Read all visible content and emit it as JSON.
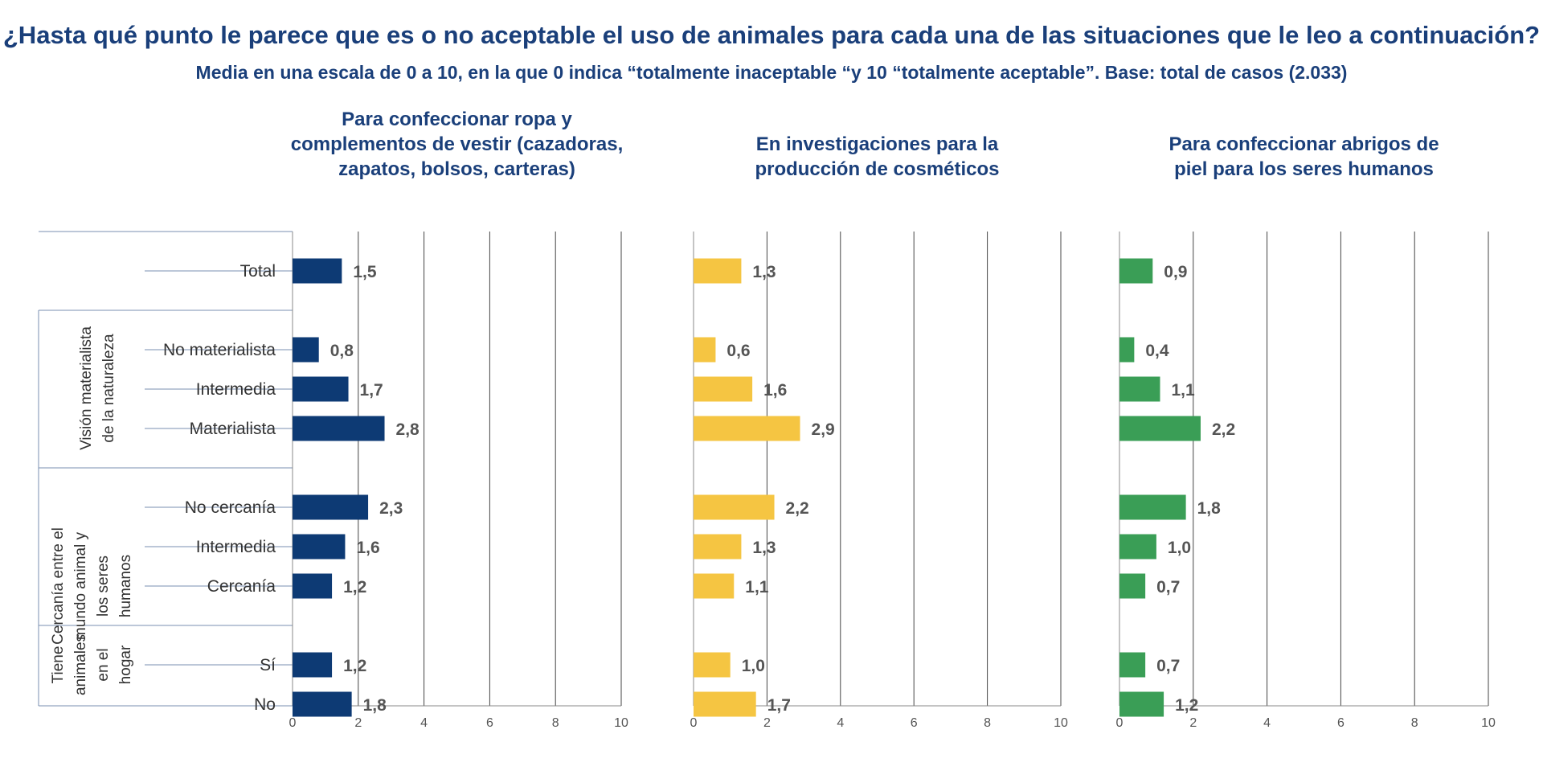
{
  "title": {
    "main": "¿Hasta qué punto le parece que es o no aceptable el uso de animales para cada una de las situaciones que le leo a continuación?",
    "sub": "Media en una escala de 0 a 10,  en la que 0 indica “totalmente inaceptable “y 10 “totalmente aceptable”. Base: total de casos (2.033)"
  },
  "colors": {
    "title": "#1a3f7a",
    "series": [
      "#0d3a74",
      "#f5c542",
      "#3a9e56"
    ]
  },
  "chart_data": {
    "type": "bar",
    "orientation": "horizontal",
    "xlim": [
      0,
      10
    ],
    "ticks": [
      "0",
      "2",
      "4",
      "6",
      "8",
      "10"
    ],
    "groups": [
      {
        "label": "",
        "rows": [
          "Total"
        ]
      },
      {
        "label": "Visión materialista de la naturaleza",
        "label_lines": [
          "Visión materialista",
          "de la naturaleza"
        ],
        "rows": [
          "No materialista",
          "Intermedia",
          "Materialista"
        ]
      },
      {
        "label": "Cercanía entre el mundo animal y los seres humanos",
        "label_lines": [
          "Cercanía entre el",
          "mundo animal y",
          "los seres",
          "humanos"
        ],
        "rows": [
          "No cercanía",
          "Intermedia",
          "Cercanía"
        ]
      },
      {
        "label": "Tiene animales en el hogar",
        "label_lines": [
          "Tiene",
          "animales",
          "en el",
          "hogar"
        ],
        "rows": [
          "Sí",
          "No"
        ]
      }
    ],
    "panels": [
      {
        "title": "Para confeccionar ropa y complementos de vestir (cazadoras, zapatos, bolsos, carteras)",
        "title_lines": [
          "Para confeccionar ropa y",
          "complementos de vestir (cazadoras,",
          "zapatos, bolsos, carteras)"
        ],
        "values": [
          1.5,
          0.8,
          1.7,
          2.8,
          2.3,
          1.6,
          1.2,
          1.2,
          1.8
        ],
        "labels": [
          "1,5",
          "0,8",
          "1,7",
          "2,8",
          "2,3",
          "1,6",
          "1,2",
          "1,2",
          "1,8"
        ]
      },
      {
        "title": "En investigaciones para la producción de cosméticos",
        "title_lines": [
          "En investigaciones para la",
          "producción de cosméticos"
        ],
        "values": [
          1.3,
          0.6,
          1.6,
          2.9,
          2.2,
          1.3,
          1.1,
          1.0,
          1.7
        ],
        "labels": [
          "1,3",
          "0,6",
          "1,6",
          "2,9",
          "2,2",
          "1,3",
          "1,1",
          "1,0",
          "1,7"
        ]
      },
      {
        "title": "Para confeccionar abrigos de piel para los seres humanos",
        "title_lines": [
          "Para confeccionar abrigos de",
          "piel para los seres humanos"
        ],
        "values": [
          0.9,
          0.4,
          1.1,
          2.2,
          1.8,
          1.0,
          0.7,
          0.7,
          1.2
        ],
        "labels": [
          "0,9",
          "0,4",
          "1,1",
          "2,2",
          "1,8",
          "1,0",
          "0,7",
          "0,7",
          "1,2"
        ]
      }
    ]
  }
}
